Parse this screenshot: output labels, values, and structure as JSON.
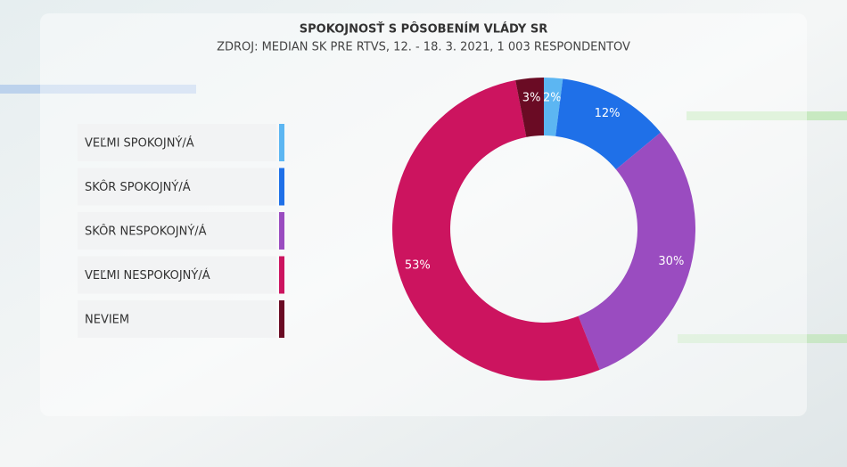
{
  "chart_data": {
    "type": "donut",
    "title": "SPOKOJNOSŤ S PÔSOBENÍM VLÁDY SR",
    "subtitle": "ZDROJ: MEDIAN SK PRE RTVS, 12. - 18. 3. 2021, 1 003 RESPONDENTOV",
    "categories": [
      "VEĽMI SPOKOJNÝ/Á",
      "SKÔR SPOKOJNÝ/Á",
      "SKÔR NESPOKOJNÝ/Á",
      "VEĽMI NESPOKOJNÝ/Á",
      "NEVIEM"
    ],
    "values": [
      2,
      12,
      30,
      53,
      3
    ],
    "value_labels": [
      "2%",
      "12%",
      "30%",
      "53%",
      "3%"
    ],
    "colors": [
      "#5cb6f2",
      "#1f70e8",
      "#9a4cc0",
      "#cc145f",
      "#6a0b24"
    ],
    "legend": "left"
  }
}
